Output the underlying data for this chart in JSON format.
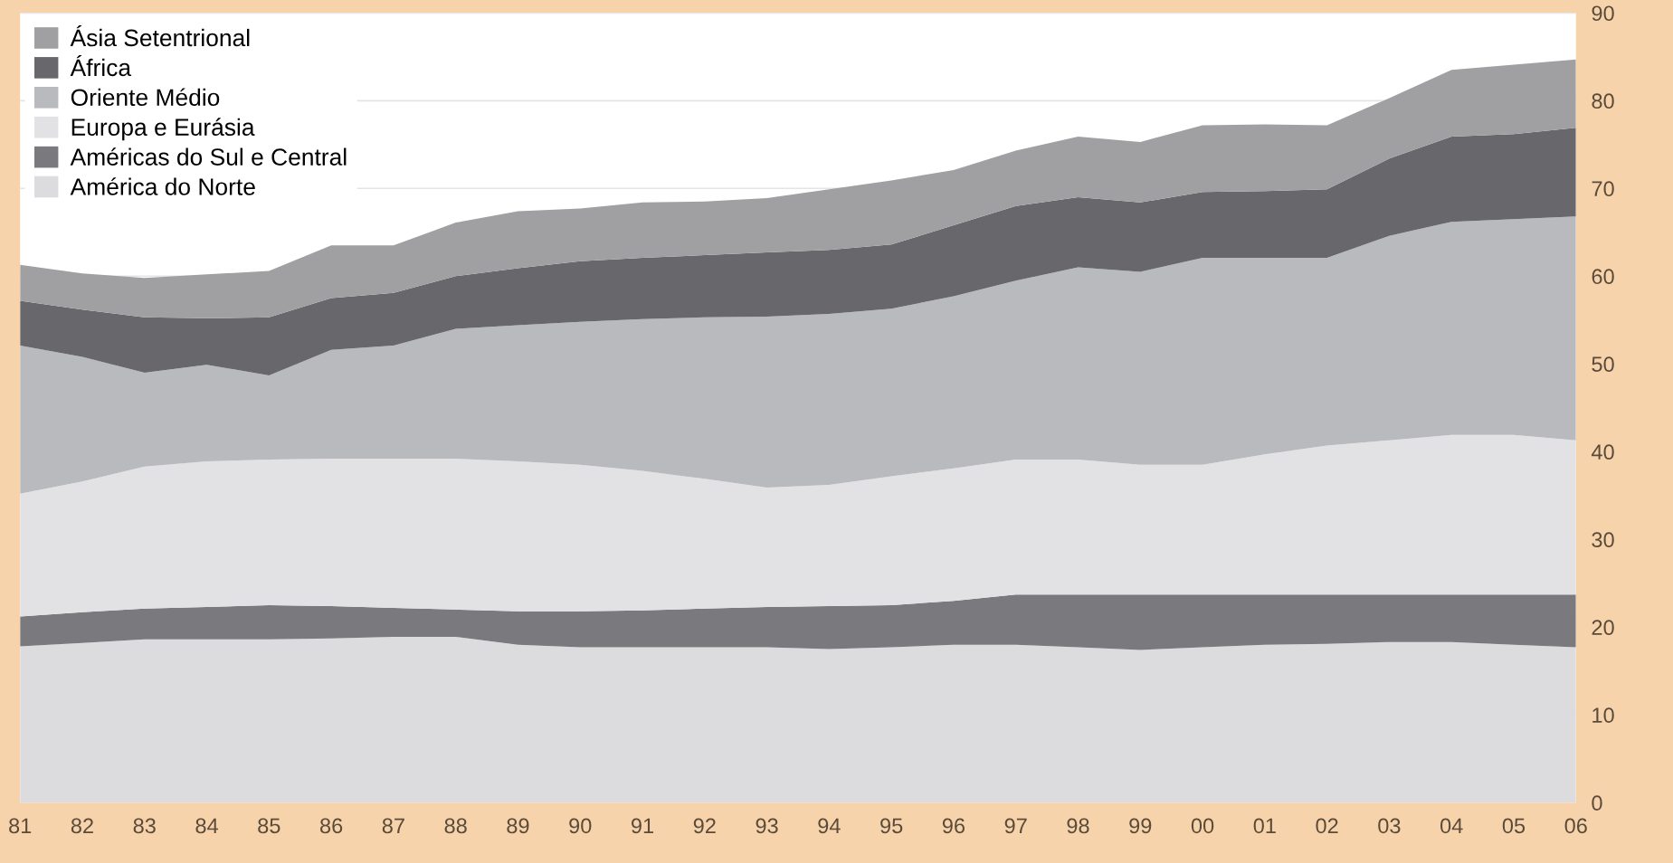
{
  "chart_data": {
    "type": "area",
    "stacked": true,
    "categories": [
      "81",
      "82",
      "83",
      "84",
      "85",
      "86",
      "87",
      "88",
      "89",
      "90",
      "91",
      "92",
      "93",
      "94",
      "95",
      "96",
      "97",
      "98",
      "99",
      "00",
      "01",
      "02",
      "03",
      "04",
      "05",
      "06"
    ],
    "series": [
      {
        "name": "América do Norte",
        "color": "#dcdcdf",
        "values": [
          17.8,
          18.2,
          18.6,
          18.6,
          18.6,
          18.7,
          18.9,
          18.9,
          18.0,
          17.7,
          17.7,
          17.7,
          17.7,
          17.5,
          17.7,
          18.0,
          18.0,
          17.7,
          17.4,
          17.7,
          18.0,
          18.1,
          18.3,
          18.3,
          18.0,
          17.7
        ]
      },
      {
        "name": "Américas do Sul e Central",
        "color": "#7a7a7e",
        "values": [
          3.4,
          3.5,
          3.5,
          3.7,
          3.9,
          3.7,
          3.3,
          3.1,
          3.8,
          4.1,
          4.2,
          4.4,
          4.6,
          4.9,
          4.8,
          5.0,
          5.7,
          6.0,
          6.3,
          6.0,
          5.7,
          5.6,
          5.4,
          5.4,
          5.7,
          6.0
        ]
      },
      {
        "name": "Europa e Eurásia",
        "color": "#e2e2e5",
        "values": [
          14.0,
          14.9,
          16.2,
          16.6,
          16.6,
          16.8,
          17.0,
          17.2,
          17.1,
          16.7,
          15.9,
          14.8,
          13.6,
          13.8,
          14.7,
          15.1,
          15.4,
          15.4,
          14.8,
          14.8,
          16.0,
          17.0,
          17.6,
          18.2,
          18.2,
          17.6
        ]
      },
      {
        "name": "Oriente Médio",
        "color": "#b8babd",
        "values": [
          16.9,
          14.2,
          10.7,
          11.0,
          9.6,
          12.4,
          12.9,
          14.8,
          15.5,
          16.3,
          17.3,
          18.4,
          19.5,
          19.5,
          19.1,
          19.6,
          20.4,
          21.9,
          22.0,
          23.6,
          22.4,
          21.4,
          23.3,
          24.3,
          24.6,
          25.5
        ]
      },
      {
        "name": "África",
        "color": "#68686c",
        "values": [
          5.1,
          5.4,
          6.3,
          5.3,
          6.6,
          5.9,
          6.0,
          6.0,
          6.5,
          6.9,
          7.0,
          7.1,
          7.3,
          7.3,
          7.3,
          8.1,
          8.5,
          8.0,
          7.9,
          7.5,
          7.6,
          7.8,
          8.8,
          9.7,
          9.7,
          10.1
        ]
      },
      {
        "name": "Ásia Setentrional",
        "color": "#a0a0a3",
        "values": [
          4.1,
          4.1,
          4.5,
          5.0,
          5.3,
          6.0,
          5.4,
          6.1,
          6.5,
          6.0,
          6.3,
          6.1,
          6.2,
          6.9,
          7.3,
          6.3,
          6.3,
          6.9,
          6.9,
          7.6,
          7.6,
          7.3,
          6.9,
          7.6,
          7.9,
          7.8
        ]
      }
    ],
    "ylim": [
      0,
      90
    ],
    "yticks": [
      0,
      10,
      20,
      30,
      40,
      50,
      60,
      70,
      80,
      90
    ],
    "grid": "y",
    "legend": "top left"
  }
}
